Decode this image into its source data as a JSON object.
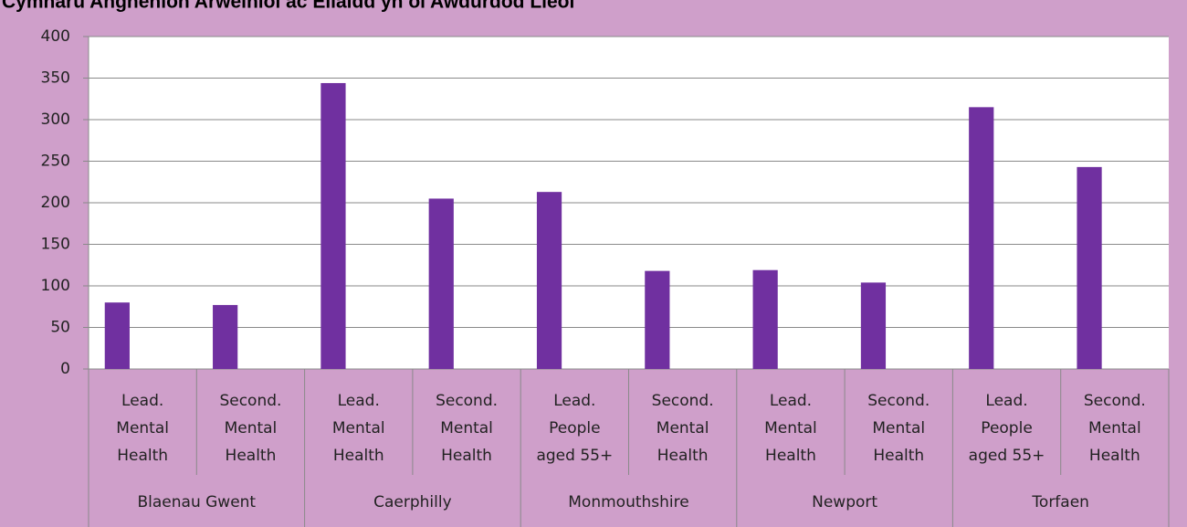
{
  "chart_data": {
    "type": "bar",
    "title": "Cymharu Anghenion Arweiniol ac Eilaidd yn ôl Awdurdod Lleol",
    "categories": [
      [
        "Lead.",
        "Mental",
        "Health"
      ],
      [
        "Second.",
        "Mental",
        "Health"
      ],
      [
        "Lead.",
        "Mental",
        "Health"
      ],
      [
        "Second.",
        "Mental",
        "Health"
      ],
      [
        "Lead.",
        "People",
        "aged 55+"
      ],
      [
        "Second.",
        "Mental",
        "Health"
      ],
      [
        "Lead.",
        "Mental",
        "Health"
      ],
      [
        "Second.",
        "Mental",
        "Health"
      ],
      [
        "Lead.",
        "People",
        "aged 55+"
      ],
      [
        "Second.",
        "Mental",
        "Health"
      ]
    ],
    "groups": [
      "Blaenau Gwent",
      "Caerphilly",
      "Monmouthshire",
      "Newport",
      "Torfaen"
    ],
    "values": [
      80,
      77,
      344,
      205,
      213,
      118,
      119,
      104,
      315,
      243
    ],
    "color": "#7030a0",
    "ylim": [
      0,
      400
    ],
    "yticks": [
      0,
      50,
      100,
      150,
      200,
      250,
      300,
      350,
      400
    ],
    "grid": true
  }
}
